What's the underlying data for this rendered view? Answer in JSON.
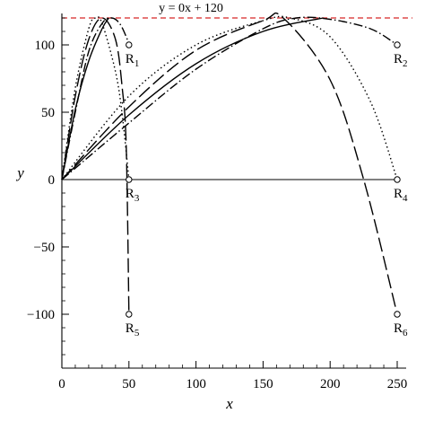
{
  "chart_data": {
    "type": "line",
    "xlabel": "x",
    "ylabel": "y",
    "xlim": [
      0,
      250
    ],
    "ylim": [
      -140,
      120
    ],
    "x_ticks": [
      0,
      50,
      100,
      150,
      200,
      250
    ],
    "y_ticks": [
      -100,
      -50,
      0,
      50,
      100
    ],
    "grid": false,
    "legend": "none",
    "reference_line": {
      "label": "y = 0x + 120",
      "y": 120,
      "color": "#d62728",
      "style": "dashed"
    },
    "zero_line": {
      "y": 0,
      "style": "solid"
    },
    "curves": [
      {
        "style": "longdash",
        "x": [
          0,
          10,
          20,
          30,
          40,
          45,
          48,
          50
        ],
        "y": [
          0,
          62,
          104,
          120,
          104,
          68,
          24,
          -100
        ]
      },
      {
        "style": "solid",
        "x": [
          0,
          10,
          20,
          30,
          35
        ],
        "y": [
          0,
          52,
          88,
          112,
          120
        ]
      },
      {
        "style": "dotted",
        "x": [
          0,
          10,
          20,
          25,
          30,
          40,
          45,
          50
        ],
        "y": [
          0,
          68,
          112,
          120,
          116,
          80,
          48,
          0
        ]
      },
      {
        "style": "dotdash",
        "x": [
          0,
          10,
          20,
          30,
          37,
          43,
          48,
          50
        ],
        "y": [
          0,
          50,
          95,
          116,
          120,
          116,
          106,
          100
        ]
      },
      {
        "style": "longdash",
        "x": [
          0,
          50,
          100,
          150,
          165,
          200,
          225,
          250
        ],
        "y": [
          0,
          54,
          96,
          118,
          120,
          74,
          0,
          -100
        ]
      },
      {
        "style": "solid",
        "x": [
          0,
          50,
          100,
          150,
          195
        ],
        "y": [
          0,
          48,
          86,
          110,
          120
        ]
      },
      {
        "style": "dotted",
        "x": [
          0,
          50,
          100,
          150,
          170,
          200,
          230,
          250
        ],
        "y": [
          0,
          62,
          100,
          118,
          120,
          106,
          58,
          0
        ]
      },
      {
        "style": "dotdash",
        "x": [
          0,
          50,
          100,
          150,
          175,
          200,
          230,
          250
        ],
        "y": [
          0,
          42,
          82,
          112,
          120,
          119,
          112,
          100
        ]
      }
    ],
    "points": [
      {
        "label": "R",
        "sub": "1",
        "x": 50,
        "y": 100
      },
      {
        "label": "R",
        "sub": "2",
        "x": 250,
        "y": 100
      },
      {
        "label": "R",
        "sub": "3",
        "x": 50,
        "y": 0
      },
      {
        "label": "R",
        "sub": "4",
        "x": 250,
        "y": 0
      },
      {
        "label": "R",
        "sub": "5",
        "x": 50,
        "y": -100
      },
      {
        "label": "R",
        "sub": "6",
        "x": 250,
        "y": -100
      }
    ]
  }
}
